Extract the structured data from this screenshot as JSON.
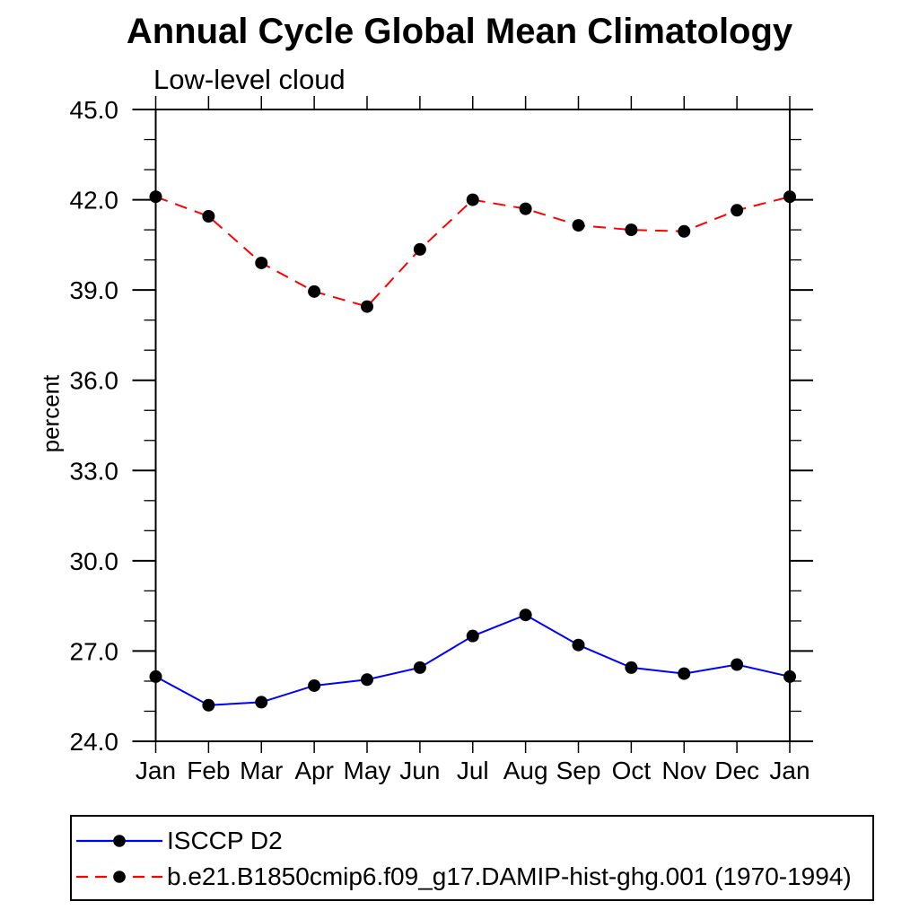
{
  "chart_data": {
    "type": "line",
    "title": "Annual Cycle Global Mean Climatology",
    "subtitle": "Low-level cloud",
    "ylabel": "percent",
    "categories": [
      "Jan",
      "Feb",
      "Mar",
      "Apr",
      "May",
      "Jun",
      "Jul",
      "Aug",
      "Sep",
      "Oct",
      "Nov",
      "Dec",
      "Jan"
    ],
    "ylim": [
      24,
      45
    ],
    "y_major_ticks": [
      24,
      27,
      30,
      33,
      36,
      39,
      42,
      45
    ],
    "y_tick_labels": [
      "24.0",
      "27.0",
      "30.0",
      "33.0",
      "36.0",
      "39.0",
      "42.0",
      "45.0"
    ],
    "y_minor_tick_interval": 1,
    "grid": false,
    "legend_position": "bottom-left-box",
    "axis_color": "#000000",
    "text_color": "#000000",
    "marker_color": "#000000",
    "series": [
      {
        "name": "ISCCP D2",
        "color": "#0000ff",
        "line_style": "solid",
        "marker": "filled-circle",
        "values": [
          26.15,
          25.2,
          25.3,
          25.85,
          26.05,
          26.45,
          27.5,
          28.2,
          27.2,
          26.45,
          26.25,
          26.55,
          26.15
        ]
      },
      {
        "name": "b.e21.B1850cmip6.f09_g17.DAMIP-hist-ghg.001 (1970-1994)",
        "color": "#ff0000",
        "line_style": "dashed",
        "marker": "filled-circle",
        "values": [
          42.1,
          41.45,
          39.9,
          38.95,
          38.45,
          40.35,
          42.0,
          41.7,
          41.15,
          41.0,
          40.95,
          41.65,
          42.1
        ]
      }
    ]
  }
}
